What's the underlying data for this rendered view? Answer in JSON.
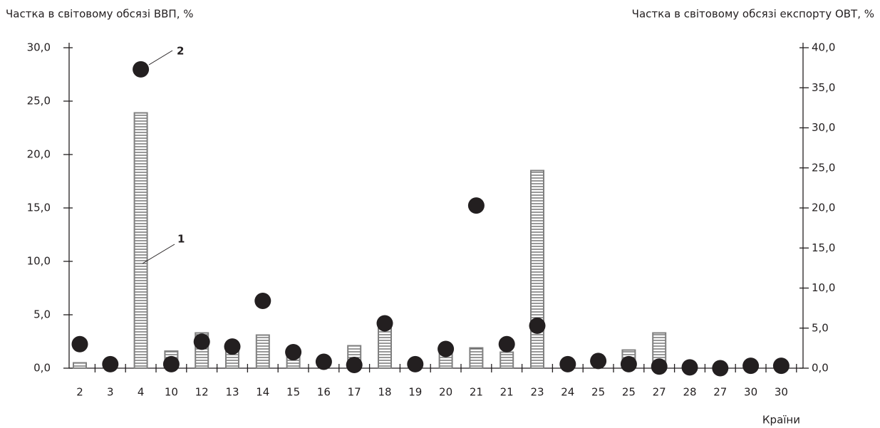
{
  "chart_data": {
    "type": "bar",
    "y_label": "Частка в світовому обсязі ВВП, %",
    "y2_label": "Частка в світовому обсязі експорту ОВТ, %",
    "x_label": "Країни",
    "categories": [
      "2",
      "3",
      "4",
      "10",
      "12",
      "13",
      "14",
      "15",
      "16",
      "17",
      "18",
      "19",
      "20",
      "21",
      "21",
      "23",
      "24",
      "25",
      "25",
      "27",
      "28",
      "27",
      "30",
      "30"
    ],
    "series": [
      {
        "type": "bar",
        "color": "#808080",
        "values": [
          0.5,
          0,
          23.9,
          1.6,
          3.3,
          1.8,
          3.1,
          1.1,
          0,
          2.1,
          4.0,
          0,
          1.8,
          1.9,
          1.5,
          18.5,
          0,
          0,
          1.7,
          3.3,
          0,
          0,
          0,
          0
        ]
      },
      {
        "type": "scatter",
        "axis": "y2",
        "color": "#231f20",
        "values": [
          3.0,
          0.5,
          37.3,
          0.5,
          3.3,
          2.7,
          8.4,
          2.0,
          0.8,
          0.4,
          5.6,
          0.5,
          2.4,
          20.3,
          3.0,
          5.3,
          0.5,
          0.9,
          0.5,
          0.2,
          0.1,
          0.0,
          0.3,
          0.3
        ]
      }
    ],
    "annotations": [
      "1",
      "2"
    ],
    "ylim": [
      0,
      30
    ],
    "yticks": [
      {
        "value": 0,
        "label": "0,0"
      },
      {
        "value": 5,
        "label": "5,0"
      },
      {
        "value": 10,
        "label": "10,0"
      },
      {
        "value": 15,
        "label": "15,0"
      },
      {
        "value": 20,
        "label": "20,0"
      },
      {
        "value": 25,
        "label": "25,0"
      },
      {
        "value": 30,
        "label": "30,0"
      }
    ],
    "y2lim": [
      0,
      40
    ],
    "y2ticks": [
      {
        "value": 0,
        "label": "0,0"
      },
      {
        "value": 5,
        "label": "5,0"
      },
      {
        "value": 10,
        "label": "10,0"
      },
      {
        "value": 15,
        "label": "15,0"
      },
      {
        "value": 20,
        "label": "20,0"
      },
      {
        "value": 25,
        "label": "25,0"
      },
      {
        "value": 30,
        "label": "30,0"
      },
      {
        "value": 35,
        "label": "35,0"
      },
      {
        "value": 40,
        "label": "40,0"
      }
    ]
  }
}
